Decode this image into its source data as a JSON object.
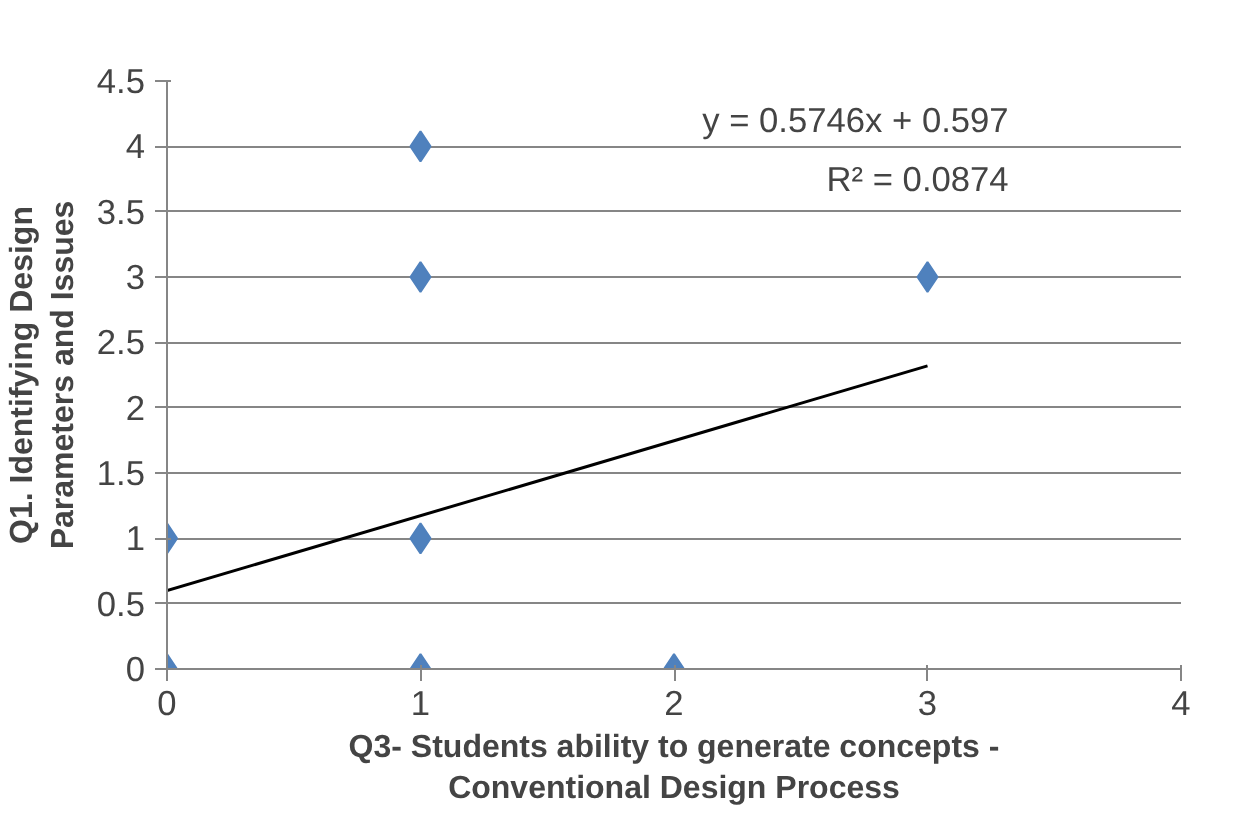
{
  "chart_data": {
    "type": "scatter",
    "xlabel": "Q3- Students ability to generate concepts - Conventional Design Process",
    "ylabel": "Q1. Identifying Design Parameters and Issues",
    "xlim": [
      0,
      4
    ],
    "ylim": [
      0,
      4.5
    ],
    "xticks": [
      0,
      1,
      2,
      3,
      4
    ],
    "yticks": [
      0,
      0.5,
      1,
      1.5,
      2,
      2.5,
      3,
      3.5,
      4,
      4.5
    ],
    "grid": "y",
    "series": [
      {
        "marker": "diamond",
        "color": "#4f81bd",
        "x": [
          0,
          0,
          1,
          1,
          1,
          1,
          2,
          3
        ],
        "values": [
          0,
          1,
          4,
          3,
          1,
          0,
          0,
          3
        ]
      },
      {
        "type": "line",
        "color": "#000000",
        "x": [
          0,
          3
        ],
        "values": [
          0.6,
          2.32
        ]
      }
    ],
    "annotations": [
      "y = 0.5746x + 0.597",
      "R² = 0.0874"
    ]
  }
}
